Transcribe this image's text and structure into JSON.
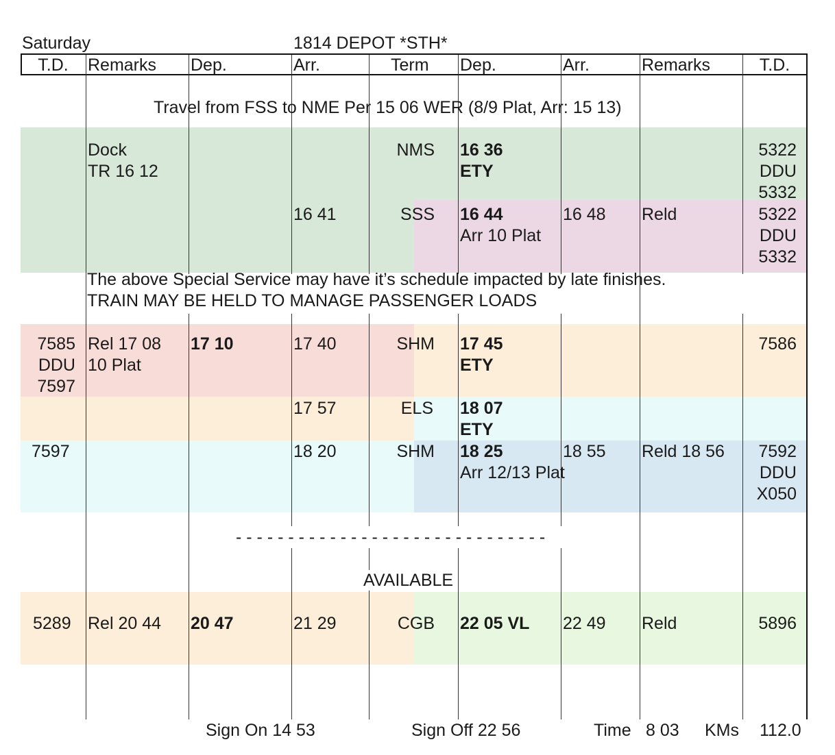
{
  "header": {
    "day": "Saturday",
    "title": "1814 DEPOT *STH*"
  },
  "columns": [
    "T.D.",
    "Remarks",
    "Dep.",
    "Arr.",
    "Term",
    "Dep.",
    "Arr.",
    "Remarks",
    "T.D."
  ],
  "travel_note": "Travel from FSS to NME Per 15 06 WER (8/9 Plat, Arr: 15 13)",
  "rows": [
    {
      "id": "nms",
      "remarks_l": "Dock\nTR 16 12",
      "term": "NMS",
      "dep_r": "16 36\nETY",
      "td_r": "5322\nDDU\n5332"
    },
    {
      "id": "sss",
      "arr_l": "16 41",
      "term": "SSS",
      "dep_r": "16 44",
      "dep_r_note": "Arr 10 Plat",
      "arr_r": "16 48",
      "remarks_r": "Reld",
      "td_r": "5322\nDDU\n5332"
    },
    {
      "id": "shm1",
      "td_l": "7585\nDDU\n7597",
      "remarks_l": "Rel 17 08\n10 Plat",
      "dep_l": "17 10",
      "arr_l": "17 40",
      "term": "SHM",
      "dep_r": "17 45\nETY",
      "td_r": "7586"
    },
    {
      "id": "els",
      "arr_l": "17 57",
      "term": "ELS",
      "dep_r": "18 07\nETY"
    },
    {
      "id": "shm2",
      "td_l": "7597",
      "arr_l": "18 20",
      "term": "SHM",
      "dep_r": "18 25",
      "dep_r_note": "Arr 12/13 Plat",
      "arr_r": "18 55",
      "remarks_r": "Reld 18 56",
      "td_r": "7592\nDDU\nX050"
    },
    {
      "id": "cgb",
      "td_l": "5289",
      "remarks_l": "Rel 20 44",
      "dep_l": "20 47",
      "arr_l": "21 29",
      "term": "CGB",
      "dep_r": "22 05 VL",
      "arr_r": "22 49",
      "remarks_r": "Reld",
      "td_r": "5896"
    }
  ],
  "special_note": {
    "line1": "The above Special Service may have it’s schedule impacted by late finishes.",
    "line2": "TRAIN MAY BE HELD TO MANAGE PASSENGER LOADS"
  },
  "divider": "- - - - - - - - - - - - - - - - - - - - - - - - - - - - - -",
  "available": "AVAILABLE",
  "footer": {
    "sign_on": "Sign On 14 53",
    "sign_off": "Sign Off 22 56",
    "time_label": "Time",
    "time_value": "8 03",
    "kms_label": "KMs",
    "kms_value": "112.0"
  },
  "colors": {
    "green": "#d8e8d8",
    "pink": "#ecd8e4",
    "red": "#f8dcd8",
    "orange": "#fdeed9",
    "cyan": "#e8fafa",
    "blue": "#d8e8f2",
    "lightgreen": "#e8f8e0"
  }
}
